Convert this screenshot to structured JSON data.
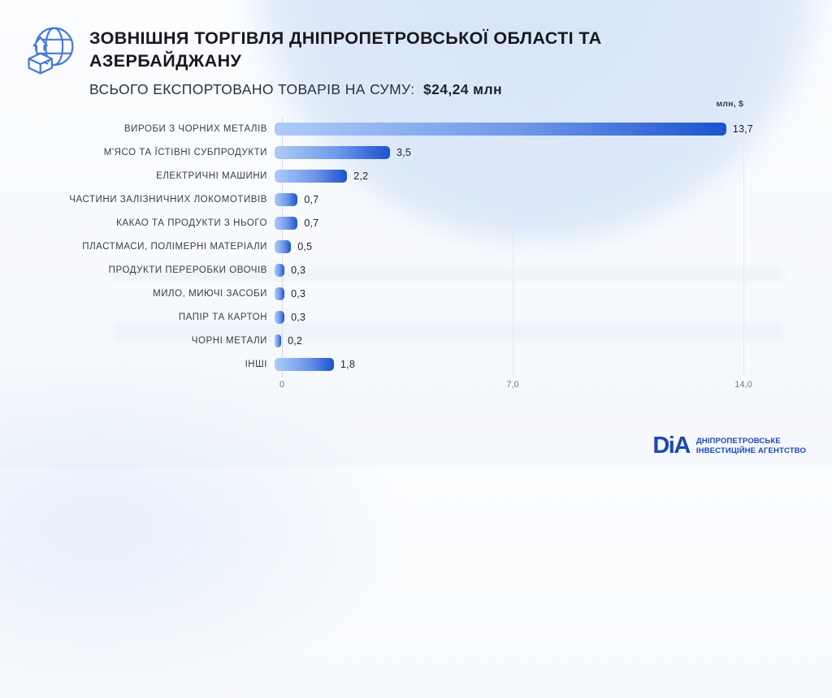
{
  "header": {
    "title": "ЗОВНІШНЯ ТОРГІВЛЯ ДНІПРОПЕТРОВСЬКОЇ ОБЛАСТІ ТА\nАЗЕРБАЙДЖАНУ",
    "subtitle_label": "ВСЬОГО ЕКСПОРТОВАНО ТОВАРІВ НА СУМУ:",
    "subtitle_value": "$24,24 млн"
  },
  "chart_data": {
    "type": "bar",
    "orientation": "horizontal",
    "title": "ЗОВНІШНЯ ТОРГІВЛЯ ДНІПРОПЕТРОВСЬКОЇ ОБЛАСТІ ТА АЗЕРБАЙДЖАНУ",
    "unit_label": "млн, $",
    "categories": [
      "ВИРОБИ З ЧОРНИХ МЕТАЛІВ",
      "М'ЯСО ТА ЇСТІВНІ СУБПРОДУКТИ",
      "ЕЛЕКТРИЧНІ МАШИНИ",
      "ЧАСТИНИ ЗАЛІЗНИЧНИХ ЛОКОМОТИВІВ",
      "КАКАО ТА ПРОДУКТИ З НЬОГО",
      "ПЛАСТМАСИ, ПОЛІМЕРНІ МАТЕРІАЛИ",
      "ПРОДУКТИ ПЕРЕРОБКИ ОВОЧІВ",
      "МИЛО, МИЮЧІ ЗАСОБИ",
      "ПАПІР ТА КАРТОН",
      "ЧОРНІ МЕТАЛИ",
      "ІНШІ"
    ],
    "values": [
      13.7,
      3.5,
      2.2,
      0.7,
      0.7,
      0.5,
      0.3,
      0.3,
      0.3,
      0.2,
      1.8
    ],
    "value_labels": [
      "13,7",
      "3,5",
      "2,2",
      "0,7",
      "0,7",
      "0,5",
      "0,3",
      "0,3",
      "0,3",
      "0,2",
      "1,8"
    ],
    "xlim": [
      0,
      14
    ],
    "x_ticks": [
      {
        "value": 0,
        "label": "0"
      },
      {
        "value": 7,
        "label": "7,0"
      },
      {
        "value": 14,
        "label": "14,0"
      }
    ],
    "grid": "vertical",
    "legend": "none",
    "colors": {
      "bar_gradient_start": "#AECBF8",
      "bar_gradient_end": "#1A53CF",
      "gridline": "#E3E7ED",
      "label_text": "#383E45",
      "accent_blue": "#1C46BC"
    }
  },
  "footer": {
    "logo_text": "DіA",
    "org_line1": "ДНІПРОПЕТРОВСЬКЕ",
    "org_line2": "ІНВЕСТИЦІЙНЕ АГЕНТСТВО"
  }
}
